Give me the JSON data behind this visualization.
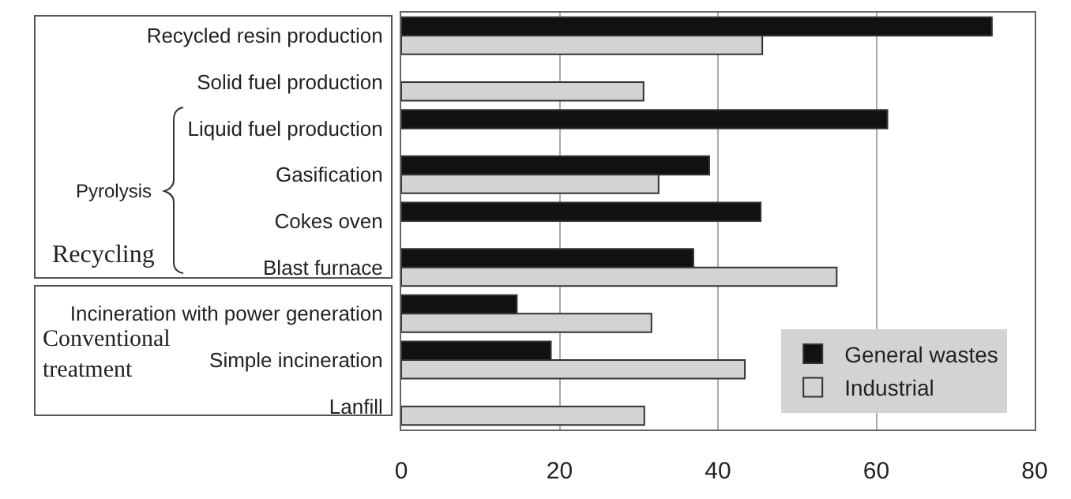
{
  "chart_data": {
    "type": "bar",
    "orientation": "horizontal",
    "categories": [
      "Recycled resin production",
      "Solid fuel production",
      "Liquid fuel production",
      "Gasification",
      "Cokes oven",
      "Blast furnace",
      "Incineration with power generation",
      "Simple incineration",
      "Lanfill"
    ],
    "series": [
      {
        "name": "General wastes",
        "color": "#111111",
        "values": [
          74.6,
          null,
          61.4,
          38.9,
          45.4,
          36.9,
          14.6,
          18.9,
          null
        ]
      },
      {
        "name": "Industrial",
        "color": "#d3d3d3",
        "values": [
          45.6,
          30.6,
          null,
          32.5,
          null,
          55.0,
          31.6,
          43.4,
          30.7
        ]
      }
    ],
    "xlim": [
      0,
      80
    ],
    "xticks": [
      0,
      20,
      40,
      60,
      80
    ],
    "grid": "x",
    "legend": "bottom right",
    "annotations": [
      "Pyrolysis",
      "Recycling",
      "Conventional treatment"
    ]
  }
}
